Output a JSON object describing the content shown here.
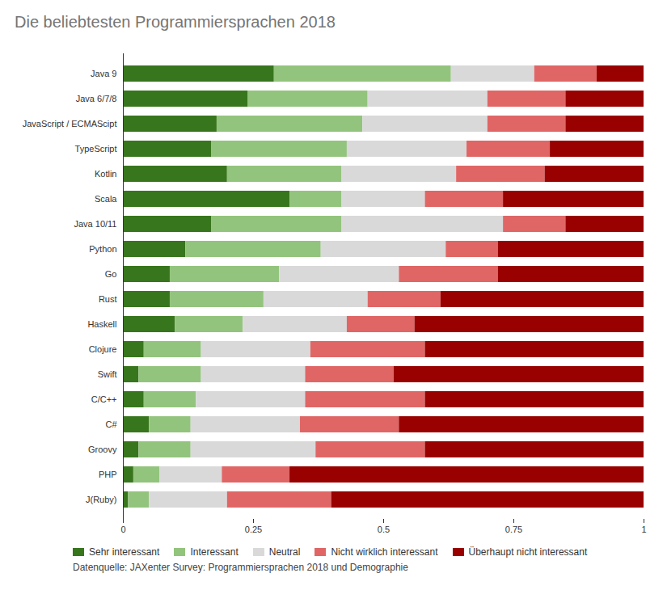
{
  "chart_data": {
    "type": "bar",
    "title": "Die beliebtesten Programmiersprachen 2018",
    "caption": "Datenquelle: JAXenter Survey: Programmiersprachen 2018 und Demographie",
    "orientation": "horizontal",
    "stacked": true,
    "grid": false,
    "legend": "bottom",
    "categories": [
      "Java 9",
      "Java 6/7/8",
      "JavaScript / ECMAScipt",
      "TypeScript",
      "Kotlin",
      "Scala",
      "Java 10/11",
      "Python",
      "Go",
      "Rust",
      "Haskell",
      "Clojure",
      "Swift",
      "C/C++",
      "C#",
      "Groovy",
      "PHP",
      "J(Ruby)"
    ],
    "series": [
      {
        "name": "Sehr interessant",
        "color": "#38761d",
        "values": [
          0.29,
          0.24,
          0.18,
          0.17,
          0.2,
          0.32,
          0.17,
          0.12,
          0.09,
          0.09,
          0.1,
          0.04,
          0.03,
          0.04,
          0.05,
          0.03,
          0.02,
          0.01
        ]
      },
      {
        "name": "Interessant",
        "color": "#93c47d",
        "values": [
          0.34,
          0.23,
          0.28,
          0.26,
          0.22,
          0.1,
          0.25,
          0.26,
          0.21,
          0.18,
          0.13,
          0.11,
          0.12,
          0.1,
          0.08,
          0.1,
          0.05,
          0.04
        ]
      },
      {
        "name": "Neutral",
        "color": "#d9d9d9",
        "values": [
          0.16,
          0.23,
          0.24,
          0.23,
          0.22,
          0.16,
          0.31,
          0.24,
          0.23,
          0.2,
          0.2,
          0.21,
          0.2,
          0.21,
          0.21,
          0.24,
          0.12,
          0.15
        ]
      },
      {
        "name": "Nicht wirklich interessant",
        "color": "#e06666",
        "values": [
          0.12,
          0.15,
          0.15,
          0.16,
          0.17,
          0.15,
          0.12,
          0.1,
          0.19,
          0.14,
          0.13,
          0.22,
          0.17,
          0.23,
          0.19,
          0.21,
          0.13,
          0.2
        ]
      },
      {
        "name": "Überhaupt nicht interessant",
        "color": "#990000",
        "values": [
          0.09,
          0.15,
          0.15,
          0.18,
          0.19,
          0.27,
          0.15,
          0.28,
          0.28,
          0.39,
          0.44,
          0.42,
          0.48,
          0.42,
          0.47,
          0.42,
          0.68,
          0.6
        ]
      }
    ],
    "xlim": [
      0,
      1
    ],
    "xticks": [
      0,
      0.25,
      0.5,
      0.75,
      1
    ]
  }
}
